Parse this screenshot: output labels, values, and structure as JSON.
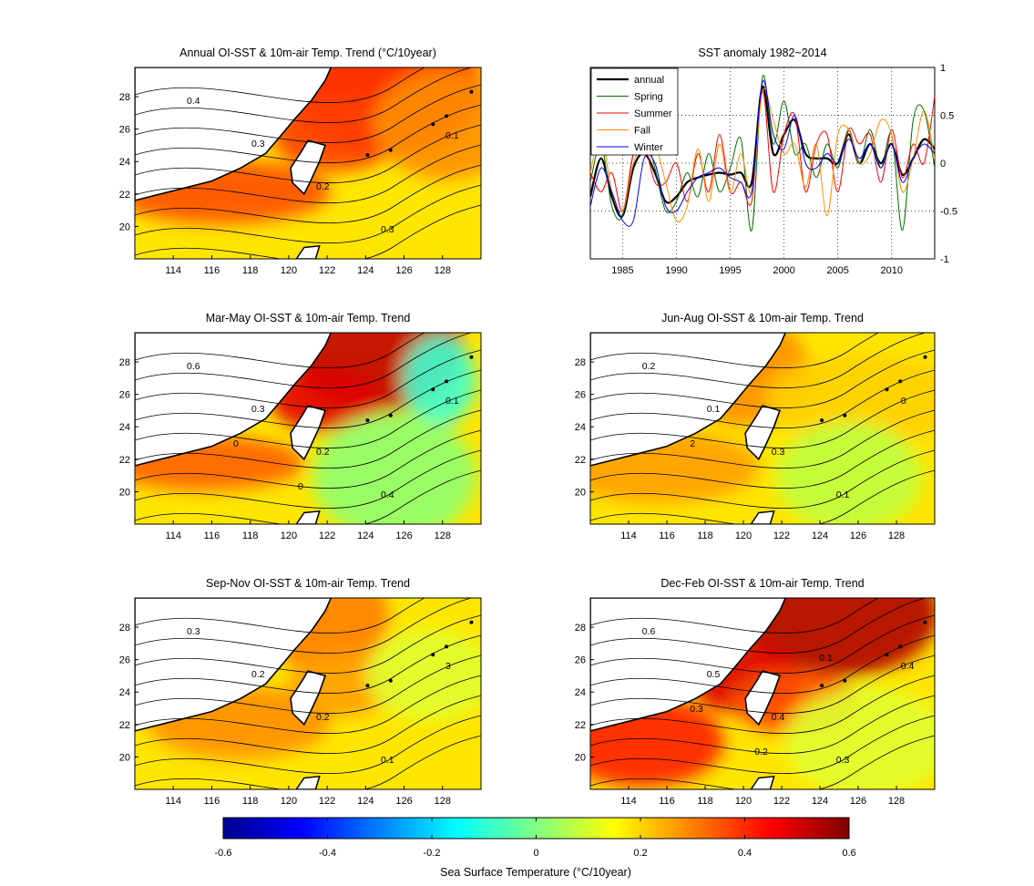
{
  "figure": {
    "map_panels": [
      {
        "id": "annual",
        "title": "Annual OI-SST & 10m-air Temp. Trend (°C/10year)",
        "contour_labels": [
          "0.4",
          "0.3",
          "0.2",
          "0.3",
          "0.1"
        ]
      },
      {
        "id": "mam",
        "title": "Mar-May OI-SST & 10m-air Temp. Trend",
        "contour_labels": [
          "0.6",
          "0.3",
          "0.2",
          "0.4",
          "0.1",
          "0",
          "0"
        ]
      },
      {
        "id": "jja",
        "title": "Jun-Aug OI-SST & 10m-air Temp. Trend",
        "contour_labels": [
          "0.2",
          "0.1",
          "0.3",
          "0.1",
          "0",
          "2"
        ]
      },
      {
        "id": "son",
        "title": "Sep-Nov OI-SST & 10m-air Temp. Trend",
        "contour_labels": [
          "0.3",
          "0.2",
          "0.2",
          "0.1",
          "3"
        ]
      },
      {
        "id": "djf",
        "title": "Dec-Feb OI-SST & 10m-air Temp. Trend",
        "contour_labels": [
          "0.6",
          "0.5",
          "0.4",
          "0.3",
          "0.4",
          "0.3",
          "0.2",
          "0.1"
        ]
      }
    ],
    "map_axes": {
      "lon_ticks": [
        "114",
        "116",
        "118",
        "120",
        "122",
        "124",
        "126",
        "128"
      ],
      "lat_ticks": [
        "28",
        "26",
        "24",
        "22",
        "20"
      ]
    },
    "colorbar": {
      "label": "Sea Surface Temperature (°C/10year)",
      "ticks": [
        "-0.6",
        "-0.4",
        "-0.2",
        "0",
        "0.2",
        "0.4",
        "0.6"
      ],
      "colors": [
        "#00008f",
        "#0000ff",
        "#0080ff",
        "#00ffff",
        "#80ff80",
        "#ffff00",
        "#ff8000",
        "#ff0000",
        "#800000"
      ]
    }
  },
  "chart_data": [
    {
      "type": "line",
      "title": "SST anomaly 1982~2014",
      "xlim": [
        1982,
        2014
      ],
      "ylim": [
        -1,
        1
      ],
      "x_ticks": [
        "1985",
        "1990",
        "1995",
        "2000",
        "2005",
        "2010"
      ],
      "y_ticks": [
        "1",
        "0.5",
        "0",
        "-0.5",
        "-1"
      ],
      "grid": "dotted",
      "legend_position": "top-left",
      "x": [
        1982,
        1983,
        1984,
        1985,
        1986,
        1987,
        1988,
        1989,
        1990,
        1991,
        1992,
        1993,
        1994,
        1995,
        1996,
        1997,
        1998,
        1999,
        2000,
        2001,
        2002,
        2003,
        2004,
        2005,
        2006,
        2007,
        2008,
        2009,
        2010,
        2011,
        2012,
        2013,
        2014
      ],
      "series": [
        {
          "name": "annual",
          "color": "#000000",
          "width": 2.2,
          "values": [
            -0.35,
            0.05,
            -0.35,
            -0.55,
            -0.05,
            0.1,
            -0.1,
            -0.4,
            -0.35,
            -0.2,
            -0.15,
            -0.12,
            -0.1,
            -0.12,
            -0.1,
            -0.2,
            0.8,
            0.1,
            0.3,
            0.45,
            0.1,
            0.05,
            0.05,
            0.0,
            0.3,
            0.0,
            0.2,
            0.0,
            0.2,
            -0.12,
            0.05,
            0.25,
            0.15
          ]
        },
        {
          "name": "Spring",
          "color": "#007000",
          "width": 1,
          "values": [
            -0.2,
            0.2,
            -0.45,
            -0.55,
            0.1,
            0.3,
            -0.05,
            -0.5,
            -0.4,
            -0.1,
            -0.35,
            0.1,
            -0.3,
            -0.05,
            0.25,
            -0.7,
            0.9,
            0.2,
            0.65,
            0.1,
            0.2,
            -0.15,
            0.2,
            -0.05,
            0.35,
            0.0,
            0.35,
            -0.05,
            0.3,
            -0.7,
            0.45,
            0.55,
            -0.05
          ]
        },
        {
          "name": "Summer",
          "color": "#ff0000",
          "width": 1,
          "values": [
            -0.1,
            -0.3,
            -0.1,
            -0.5,
            0.1,
            0.2,
            -0.2,
            -0.2,
            0.0,
            -0.4,
            0.1,
            -0.3,
            0.3,
            -0.3,
            -0.2,
            -0.4,
            0.75,
            -0.3,
            0.3,
            0.5,
            -0.3,
            0.2,
            0.3,
            -0.3,
            0.35,
            0.2,
            0.3,
            -0.2,
            0.35,
            -0.15,
            0.2,
            0.0,
            0.7
          ]
        },
        {
          "name": "Fall",
          "color": "#ff9000",
          "width": 1,
          "values": [
            -0.1,
            0.3,
            -0.3,
            -0.5,
            0.0,
            0.2,
            0.2,
            -0.2,
            -0.6,
            -0.45,
            0.15,
            -0.4,
            0.2,
            -0.3,
            0.1,
            -0.3,
            0.75,
            0.45,
            0.1,
            0.2,
            -0.25,
            0.2,
            -0.55,
            0.3,
            0.35,
            0.0,
            0.1,
            0.45,
            0.3,
            -0.3,
            0.05,
            0.55,
            0.05
          ]
        },
        {
          "name": "Winter",
          "color": "#0000ff",
          "width": 1,
          "values": [
            -0.45,
            -0.05,
            -0.3,
            -0.6,
            -0.6,
            0.05,
            0.0,
            -0.45,
            -0.5,
            -0.3,
            -0.15,
            -0.1,
            -0.05,
            -0.15,
            -0.2,
            -0.3,
            0.85,
            0.3,
            0.15,
            0.5,
            0.0,
            -0.05,
            0.1,
            0.0,
            0.25,
            0.05,
            0.2,
            -0.05,
            0.2,
            -0.2,
            0.05,
            0.2,
            0.1
          ]
        }
      ]
    }
  ]
}
